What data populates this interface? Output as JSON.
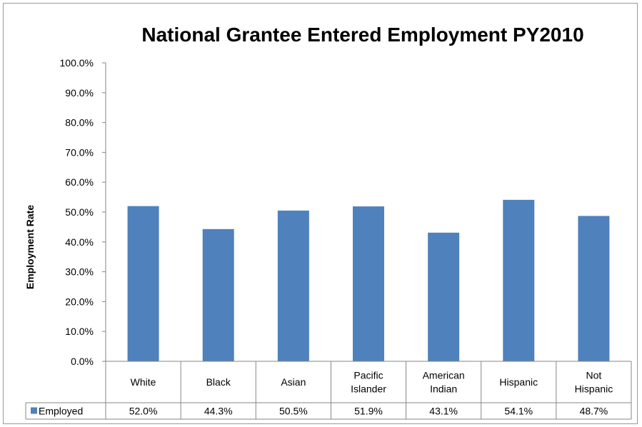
{
  "chart_data": {
    "type": "bar",
    "title": "National Grantee Entered Employment PY2010",
    "xlabel": "",
    "ylabel": "Employment Rate",
    "ylim": [
      0,
      100
    ],
    "ytick_step": 10,
    "ytick_labels": [
      "0.0%",
      "10.0%",
      "20.0%",
      "30.0%",
      "40.0%",
      "50.0%",
      "60.0%",
      "70.0%",
      "80.0%",
      "90.0%",
      "100.0%"
    ],
    "categories": [
      [
        "White"
      ],
      [
        "Black"
      ],
      [
        "Asian"
      ],
      [
        "Pacific",
        "Islander"
      ],
      [
        "American",
        "Indian"
      ],
      [
        "Hispanic"
      ],
      [
        "Not",
        "Hispanic"
      ]
    ],
    "series": [
      {
        "name": "Employed",
        "values": [
          52.0,
          44.3,
          50.5,
          51.9,
          43.1,
          54.1,
          48.7
        ],
        "labels": [
          "52.0%",
          "44.3%",
          "50.5%",
          "51.9%",
          "43.1%",
          "54.1%",
          "48.7%"
        ],
        "color": "#4f81bd"
      }
    ],
    "grid": false,
    "legend": "data-table"
  }
}
